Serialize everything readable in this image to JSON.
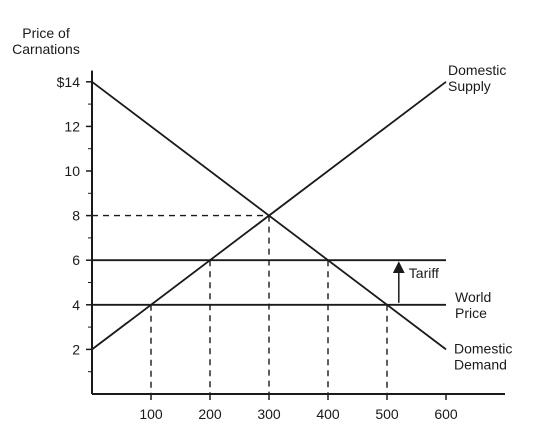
{
  "chart_data": {
    "type": "line",
    "title": "",
    "xlabel": "",
    "ylabel": [
      "Price of",
      "Carnations"
    ],
    "xlim": [
      0,
      700
    ],
    "ylim": [
      0,
      14.5
    ],
    "x_ticks": [
      100,
      200,
      300,
      400,
      500,
      600
    ],
    "x_tick_labels": [
      "100",
      "200",
      "300",
      "400",
      "500",
      "600"
    ],
    "y_ticks": [
      2,
      4,
      6,
      8,
      10,
      12,
      14
    ],
    "y_tick_labels": [
      "2",
      "4",
      "6",
      "8",
      "10",
      "12",
      "$14"
    ],
    "y_minor_ticks": [
      1,
      3,
      5,
      7,
      9,
      11,
      13
    ],
    "series": [
      {
        "name": "Domestic Supply",
        "labels": [
          "Domestic",
          "Supply"
        ],
        "points": [
          [
            0,
            2
          ],
          [
            600,
            14
          ]
        ]
      },
      {
        "name": "Domestic Demand",
        "labels": [
          "Domestic",
          "Demand"
        ],
        "points": [
          [
            0,
            14
          ],
          [
            600,
            2
          ]
        ]
      },
      {
        "name": "World Price",
        "labels": [
          "World",
          "Price"
        ],
        "points": [
          [
            0,
            4
          ],
          [
            600,
            4
          ]
        ]
      },
      {
        "name": "World Price + Tariff",
        "labels": [],
        "points": [
          [
            0,
            6
          ],
          [
            600,
            6
          ]
        ]
      }
    ],
    "dashed_horizontal": [
      {
        "y": 8,
        "x_to": 300
      }
    ],
    "dashed_vertical": [
      {
        "x": 100,
        "y_to": 4
      },
      {
        "x": 200,
        "y_to": 6
      },
      {
        "x": 300,
        "y_to": 8
      },
      {
        "x": 400,
        "y_to": 6
      },
      {
        "x": 500,
        "y_to": 4
      }
    ],
    "annotations": [
      {
        "text": "Tariff",
        "arrow_x": 520,
        "arrow_from": 4,
        "arrow_to": 6
      }
    ]
  }
}
